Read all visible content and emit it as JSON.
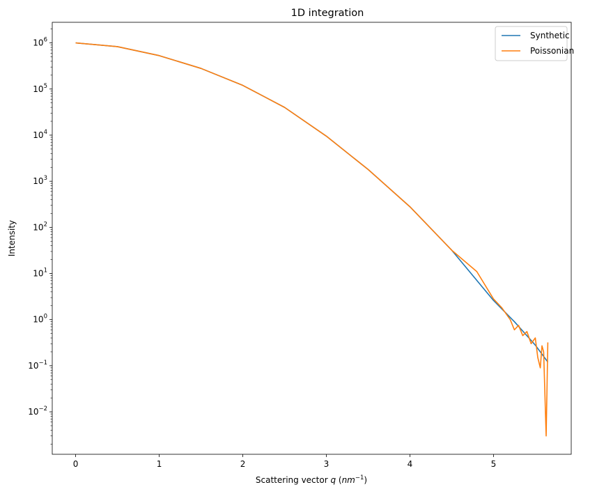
{
  "chart_data": {
    "type": "line",
    "title": "1D integration",
    "xlabel": "Scattering vector q (nm⁻¹)",
    "xlabel_parts": {
      "prefix": "Scattering vector ",
      "var": "q",
      "unit_open": " (",
      "unit": "nm",
      "exp": "−1",
      "unit_close": ")"
    },
    "ylabel": "Intensity",
    "yscale": "log",
    "xlim": [
      -0.28,
      5.93
    ],
    "ylim": [
      0.0012,
      2800000
    ],
    "x_ticks": [
      0,
      1,
      2,
      3,
      4,
      5
    ],
    "y_tick_exponents": [
      -2,
      -1,
      0,
      1,
      2,
      3,
      4,
      5,
      6
    ],
    "grid": false,
    "legend": {
      "position": "top-right",
      "entries": [
        "Synthetic",
        "Poissonian"
      ]
    },
    "series": [
      {
        "name": "Synthetic",
        "color": "#1f77b4",
        "x": [
          0,
          0.5,
          1.0,
          1.5,
          2.0,
          2.5,
          3.0,
          3.5,
          4.0,
          4.5,
          5.0,
          5.25,
          5.5,
          5.65
        ],
        "y": [
          1000000,
          830000,
          530000,
          280000,
          120000,
          40000,
          9500,
          1800,
          280,
          32,
          2.6,
          0.9,
          0.28,
          0.12
        ]
      },
      {
        "name": "Poissonian",
        "color": "#ff7f0e",
        "x": [
          0,
          0.5,
          1.0,
          1.5,
          2.0,
          2.5,
          3.0,
          3.5,
          4.0,
          4.5,
          4.8,
          5.0,
          5.1,
          5.2,
          5.25,
          5.3,
          5.35,
          5.4,
          5.45,
          5.5,
          5.53,
          5.56,
          5.58,
          5.6,
          5.63,
          5.65
        ],
        "y": [
          1000000,
          830000,
          530000,
          280000,
          120000,
          40000,
          9500,
          1800,
          280,
          32,
          11,
          2.8,
          1.8,
          1.0,
          0.6,
          0.75,
          0.45,
          0.55,
          0.3,
          0.4,
          0.15,
          0.09,
          0.27,
          0.2,
          0.003,
          0.32
        ]
      }
    ]
  }
}
